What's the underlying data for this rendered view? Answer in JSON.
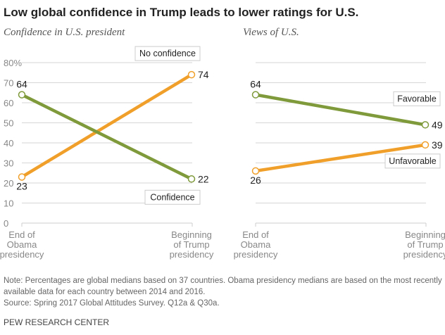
{
  "title": "Low global confidence in Trump leads to lower ratings for U.S.",
  "chart_data": [
    {
      "type": "line",
      "title": "Confidence in U.S. president",
      "categories": [
        "End of Obama presidency",
        "Beginning of Trump presidency"
      ],
      "series": [
        {
          "name": "No confidence",
          "values": [
            23,
            74
          ],
          "color": "#f0a02a"
        },
        {
          "name": "Confidence",
          "values": [
            64,
            22
          ],
          "color": "#7f9a3a"
        }
      ],
      "ylim": [
        0,
        80
      ],
      "yticks": [
        "0",
        "10",
        "20",
        "30",
        "40",
        "50",
        "60",
        "70",
        "80%"
      ],
      "grid": true
    },
    {
      "type": "line",
      "title": "Views of U.S.",
      "categories": [
        "End of Obama presidency",
        "Beginning of Trump presidency"
      ],
      "series": [
        {
          "name": "Favorable",
          "values": [
            64,
            49
          ],
          "color": "#7f9a3a"
        },
        {
          "name": "Unfavorable",
          "values": [
            26,
            39
          ],
          "color": "#f0a02a"
        }
      ],
      "ylim": [
        0,
        80
      ],
      "grid": true
    }
  ],
  "xlabels": [
    [
      "End of",
      "Obama",
      "presidency"
    ],
    [
      "Beginning",
      "of Trump",
      "presidency"
    ]
  ],
  "note": [
    "Note: Percentages are global medians based on 37 countries. Obama presidency medians are based on the most recently",
    "available data for each country between 2014 and 2016.",
    "Source: Spring 2017 Global Attitudes Survey. Q12a & Q30a."
  ],
  "footer": "PEW RESEARCH CENTER"
}
